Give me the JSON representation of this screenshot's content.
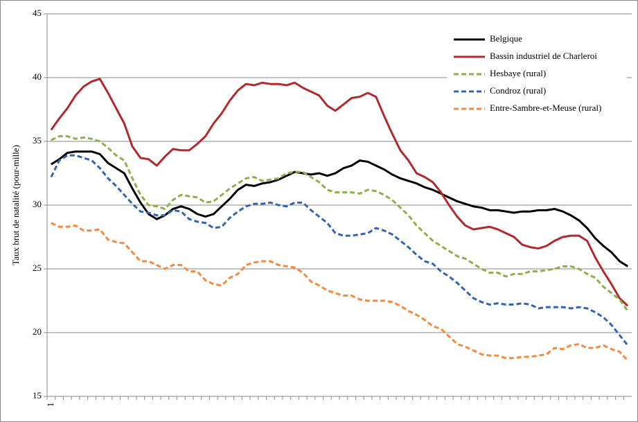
{
  "chart_data": {
    "type": "line",
    "ylabel": "Taux brut de natalité (pour-mille)",
    "categories": [
      "1",
      null,
      null,
      null,
      null,
      null,
      null,
      null,
      null,
      null,
      null,
      null,
      null,
      null,
      null,
      null,
      null,
      null,
      null,
      null,
      null,
      null,
      null,
      null,
      null,
      null,
      null,
      null,
      null,
      null,
      null,
      null,
      null,
      null,
      null,
      null,
      null,
      null,
      null,
      null,
      null,
      null,
      null,
      null,
      null,
      null,
      null,
      null,
      null,
      null,
      null,
      null,
      null,
      null,
      null,
      null,
      null,
      null,
      null,
      null,
      null,
      null,
      null,
      null,
      null,
      null,
      null,
      null,
      null,
      null,
      null,
      null
    ],
    "ylim": [
      15,
      45
    ],
    "yticks": [
      15,
      20,
      25,
      30,
      35,
      40,
      45
    ],
    "grid": true,
    "legend": "upper-right",
    "series": [
      {
        "name": "Belgique",
        "color": "#000000",
        "dashed": false,
        "values": [
          33.2,
          33.6,
          34.1,
          34.2,
          34.2,
          34.2,
          34.0,
          33.3,
          32.9,
          32.5,
          31.3,
          30.2,
          29.3,
          28.9,
          29.2,
          29.7,
          29.9,
          29.7,
          29.3,
          29.1,
          29.3,
          29.9,
          30.5,
          31.2,
          31.6,
          31.5,
          31.7,
          31.8,
          32.0,
          32.3,
          32.6,
          32.5,
          32.4,
          32.5,
          32.3,
          32.5,
          32.9,
          33.1,
          33.5,
          33.4,
          33.1,
          32.8,
          32.4,
          32.1,
          31.9,
          31.7,
          31.4,
          31.2,
          30.9,
          30.6,
          30.3,
          30.1,
          29.9,
          29.8,
          29.6,
          29.6,
          29.5,
          29.4,
          29.5,
          29.5,
          29.6,
          29.6,
          29.7,
          29.5,
          29.2,
          28.8,
          28.2,
          27.4,
          26.8,
          26.3,
          25.6,
          25.2
        ]
      },
      {
        "name": "Bassin industriel de Charleroi",
        "color": "#b5272d",
        "dashed": false,
        "values": [
          35.9,
          36.8,
          37.6,
          38.6,
          39.3,
          39.7,
          39.9,
          38.8,
          37.6,
          36.4,
          34.6,
          33.7,
          33.6,
          33.1,
          33.8,
          34.4,
          34.3,
          34.3,
          34.8,
          35.4,
          36.4,
          37.2,
          38.2,
          39.0,
          39.5,
          39.4,
          39.6,
          39.5,
          39.5,
          39.4,
          39.6,
          39.2,
          38.9,
          38.6,
          37.8,
          37.4,
          37.9,
          38.4,
          38.5,
          38.8,
          38.5,
          37.0,
          35.6,
          34.3,
          33.5,
          32.5,
          32.2,
          31.8,
          31.0,
          30.0,
          29.1,
          28.4,
          28.1,
          28.2,
          28.3,
          28.1,
          27.8,
          27.5,
          26.9,
          26.7,
          26.6,
          26.8,
          27.2,
          27.5,
          27.6,
          27.6,
          27.2,
          25.9,
          24.8,
          23.8,
          22.7,
          22.1
        ]
      },
      {
        "name": "Hesbaye (rural)",
        "color": "#8db04a",
        "dashed": true,
        "values": [
          35.1,
          35.4,
          35.4,
          35.2,
          35.3,
          35.2,
          35.0,
          34.5,
          33.9,
          33.5,
          32.1,
          30.8,
          30.0,
          29.9,
          29.7,
          30.4,
          30.8,
          30.7,
          30.6,
          30.2,
          30.3,
          30.8,
          31.3,
          31.7,
          32.1,
          32.2,
          31.9,
          32.0,
          32.1,
          32.5,
          32.6,
          32.6,
          32.2,
          31.8,
          31.2,
          31.0,
          31.0,
          31.0,
          30.9,
          31.2,
          31.1,
          30.8,
          30.4,
          29.8,
          29.2,
          28.4,
          27.8,
          27.2,
          26.8,
          26.4,
          26.0,
          25.8,
          25.4,
          25.0,
          24.7,
          24.7,
          24.4,
          24.6,
          24.6,
          24.8,
          24.8,
          24.9,
          25.0,
          25.2,
          25.2,
          25.0,
          24.6,
          24.3,
          23.6,
          23.1,
          22.6,
          21.7
        ]
      },
      {
        "name": "Condroz (rural)",
        "color": "#3264b4",
        "dashed": true,
        "values": [
          32.2,
          33.5,
          33.9,
          33.9,
          33.7,
          33.5,
          32.9,
          32.1,
          31.5,
          30.8,
          30.1,
          29.5,
          29.4,
          29.2,
          29.2,
          29.6,
          29.5,
          28.9,
          28.7,
          28.6,
          28.2,
          28.3,
          29.0,
          29.5,
          29.9,
          30.1,
          30.1,
          30.2,
          30.0,
          29.9,
          30.2,
          30.2,
          29.6,
          29.1,
          28.6,
          27.8,
          27.6,
          27.6,
          27.7,
          27.8,
          28.2,
          28.0,
          27.7,
          27.2,
          26.7,
          26.1,
          25.6,
          25.4,
          24.8,
          24.4,
          23.9,
          23.3,
          22.7,
          22.4,
          22.2,
          22.3,
          22.2,
          22.2,
          22.3,
          22.2,
          21.9,
          22.0,
          22.0,
          22.0,
          21.9,
          22.0,
          21.9,
          21.6,
          21.2,
          20.6,
          19.8,
          19.0
        ]
      },
      {
        "name": "Entre-Sambre-et-Meuse (rural)",
        "color": "#f58a3c",
        "dashed": true,
        "values": [
          28.6,
          28.3,
          28.3,
          28.4,
          28.0,
          28.0,
          28.1,
          27.3,
          27.1,
          27.0,
          26.3,
          25.6,
          25.6,
          25.3,
          25.0,
          25.3,
          25.3,
          24.8,
          24.8,
          24.1,
          23.8,
          23.7,
          24.3,
          24.6,
          25.3,
          25.5,
          25.6,
          25.6,
          25.3,
          25.2,
          25.1,
          24.7,
          24.0,
          23.7,
          23.3,
          23.1,
          22.9,
          22.9,
          22.6,
          22.5,
          22.5,
          22.5,
          22.4,
          22.1,
          21.7,
          21.4,
          21.0,
          20.5,
          20.3,
          19.7,
          19.1,
          18.9,
          18.6,
          18.3,
          18.2,
          18.2,
          18.0,
          18.0,
          18.1,
          18.1,
          18.2,
          18.3,
          18.8,
          18.7,
          19.0,
          19.1,
          18.8,
          18.8,
          19.0,
          18.7,
          18.5,
          17.8
        ]
      }
    ]
  }
}
